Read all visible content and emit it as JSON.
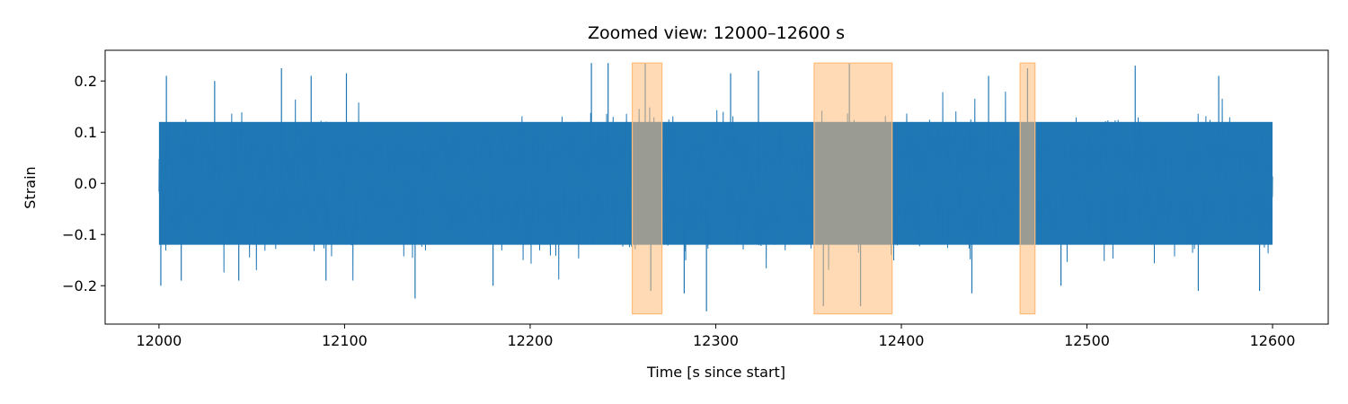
{
  "chart_data": {
    "type": "line",
    "title": "Zoomed view: 12000–12600 s",
    "xlabel": "Time [s since start]",
    "ylabel": "Strain",
    "xlim": [
      11971,
      12630
    ],
    "ylim": [
      -0.275,
      0.26
    ],
    "x_ticks": [
      12000,
      12100,
      12200,
      12300,
      12400,
      12500,
      12600
    ],
    "y_ticks": [
      0.2,
      0.1,
      0.0,
      -0.1,
      -0.2
    ],
    "y_tick_labels": [
      "0.2",
      "0.1",
      "0.0",
      "−0.1",
      "−0.2"
    ],
    "grid": false,
    "series": [
      {
        "color": "#1f77b4",
        "x_range": [
          12000,
          12600
        ],
        "envelope_typical": [
          -0.12,
          0.12
        ],
        "peaks": [
          {
            "x": 12001,
            "y": -0.2
          },
          {
            "x": 12004,
            "y": 0.21
          },
          {
            "x": 12012,
            "y": -0.19
          },
          {
            "x": 12030,
            "y": 0.2
          },
          {
            "x": 12043,
            "y": -0.19
          },
          {
            "x": 12066,
            "y": 0.225
          },
          {
            "x": 12082,
            "y": 0.21
          },
          {
            "x": 12090,
            "y": -0.19
          },
          {
            "x": 12101,
            "y": 0.215
          },
          {
            "x": 12138,
            "y": -0.225
          },
          {
            "x": 12180,
            "y": -0.2
          },
          {
            "x": 12233,
            "y": 0.235
          },
          {
            "x": 12242,
            "y": 0.235
          },
          {
            "x": 12262,
            "y": 0.235
          },
          {
            "x": 12265,
            "y": -0.21
          },
          {
            "x": 12283,
            "y": -0.215
          },
          {
            "x": 12295,
            "y": -0.25
          },
          {
            "x": 12308,
            "y": 0.215
          },
          {
            "x": 12323,
            "y": 0.22
          },
          {
            "x": 12358,
            "y": -0.24
          },
          {
            "x": 12372,
            "y": 0.235
          },
          {
            "x": 12378,
            "y": -0.24
          },
          {
            "x": 12438,
            "y": -0.215
          },
          {
            "x": 12447,
            "y": 0.21
          },
          {
            "x": 12468,
            "y": 0.225
          },
          {
            "x": 12486,
            "y": -0.2
          },
          {
            "x": 12526,
            "y": 0.23
          },
          {
            "x": 12560,
            "y": -0.21
          },
          {
            "x": 12571,
            "y": 0.21
          },
          {
            "x": 12593,
            "y": -0.21
          }
        ]
      }
    ],
    "highlight_regions": [
      {
        "x0": 12255,
        "x1": 12271,
        "y0": -0.255,
        "y1": 0.235
      },
      {
        "x0": 12353,
        "x1": 12395,
        "y0": -0.255,
        "y1": 0.235
      },
      {
        "x0": 12464,
        "x1": 12472,
        "y0": -0.255,
        "y1": 0.235
      }
    ],
    "highlight_color": "#ffbb78"
  }
}
